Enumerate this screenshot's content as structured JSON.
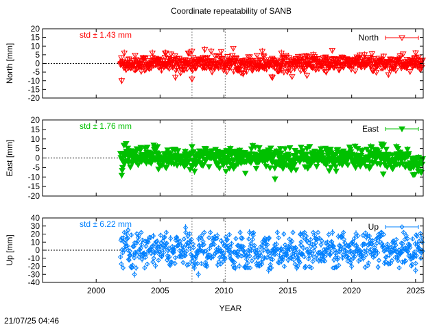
{
  "title": "Coordinate repeatability of SANB",
  "xlabel": "YEAR",
  "timestamp": "21/07/25 04:46",
  "colors": {
    "north": "#ff0000",
    "east": "#00c000",
    "up": "#0080ff",
    "axis": "#000000",
    "grid": "#808080"
  },
  "chart_data": [
    {
      "type": "scatter",
      "component": "north",
      "ylabel": "North [mm]",
      "legend": "North",
      "std_label": "std ± 1.43 mm",
      "std": 1.43,
      "xlim": [
        1995.8,
        2025.6
      ],
      "ylim": [
        -20,
        20
      ],
      "yticks": [
        -20,
        -15,
        -10,
        -5,
        0,
        5,
        10,
        15,
        20
      ],
      "xticks": [
        2000,
        2005,
        2010,
        2015,
        2020,
        2025
      ],
      "vlines": [
        2007.5,
        2010.1
      ],
      "data_start": 2001.9,
      "data_end": 2025.55,
      "marker": "triangle-down-open",
      "outliers": [
        {
          "x": 2002.0,
          "y": -10
        },
        {
          "x": 2002.2,
          "y": 6
        },
        {
          "x": 2004.4,
          "y": 6
        },
        {
          "x": 2005.4,
          "y": 6
        },
        {
          "x": 2007.2,
          "y": 6
        },
        {
          "x": 2007.5,
          "y": 7
        },
        {
          "x": 2008.5,
          "y": 8
        },
        {
          "x": 2009.0,
          "y": 7
        },
        {
          "x": 2006.2,
          "y": -8
        },
        {
          "x": 2007.5,
          "y": -9
        },
        {
          "x": 2011.5,
          "y": -6
        },
        {
          "x": 2013.0,
          "y": 7
        },
        {
          "x": 2013.8,
          "y": -8
        },
        {
          "x": 2014.5,
          "y": 6
        },
        {
          "x": 2016.5,
          "y": -7
        },
        {
          "x": 2017.0,
          "y": 5
        },
        {
          "x": 2018.0,
          "y": -5
        },
        {
          "x": 2021.0,
          "y": 5
        }
      ]
    },
    {
      "type": "scatter",
      "component": "east",
      "ylabel": "East [mm]",
      "legend": "East",
      "std_label": "std ± 1.76 mm",
      "std": 1.76,
      "xlim": [
        1995.8,
        2025.6
      ],
      "ylim": [
        -20,
        20
      ],
      "yticks": [
        -20,
        -15,
        -10,
        -5,
        0,
        5,
        10,
        15,
        20
      ],
      "xticks": [
        2000,
        2005,
        2010,
        2015,
        2020,
        2025
      ],
      "vlines": [
        2007.5,
        2010.1
      ],
      "data_start": 2001.9,
      "data_end": 2025.55,
      "marker": "triangle-down-filled",
      "outliers": [
        {
          "x": 2002.0,
          "y": -9
        },
        {
          "x": 2004.8,
          "y": 6
        },
        {
          "x": 2007.5,
          "y": 6
        },
        {
          "x": 2007.7,
          "y": -7
        },
        {
          "x": 2010.5,
          "y": 5
        },
        {
          "x": 2014.0,
          "y": -11
        },
        {
          "x": 2016.5,
          "y": 5
        },
        {
          "x": 2021.5,
          "y": 6
        },
        {
          "x": 2023.5,
          "y": 6
        },
        {
          "x": 2025.4,
          "y": -7
        }
      ]
    },
    {
      "type": "scatter",
      "component": "up",
      "ylabel": "Up [mm]",
      "legend": "Up",
      "std_label": "std ± 6.22 mm",
      "std": 6.22,
      "xlim": [
        1995.8,
        2025.6
      ],
      "ylim": [
        -40,
        40
      ],
      "yticks": [
        -40,
        -30,
        -20,
        -10,
        0,
        10,
        20,
        30,
        40
      ],
      "xticks": [
        2000,
        2005,
        2010,
        2015,
        2020,
        2025
      ],
      "vlines": [
        2007.5,
        2010.1
      ],
      "data_start": 2001.9,
      "data_end": 2025.55,
      "marker": "diamond-open",
      "outliers": [
        {
          "x": 2002.5,
          "y": 25
        },
        {
          "x": 2003.0,
          "y": -30
        },
        {
          "x": 2007.0,
          "y": 28
        },
        {
          "x": 2008.0,
          "y": -30
        },
        {
          "x": 2012.0,
          "y": 22
        },
        {
          "x": 2013.5,
          "y": -25
        },
        {
          "x": 2016.0,
          "y": 20
        },
        {
          "x": 2018.5,
          "y": 22
        },
        {
          "x": 2020.0,
          "y": -20
        },
        {
          "x": 2025.0,
          "y": -25
        }
      ]
    }
  ]
}
